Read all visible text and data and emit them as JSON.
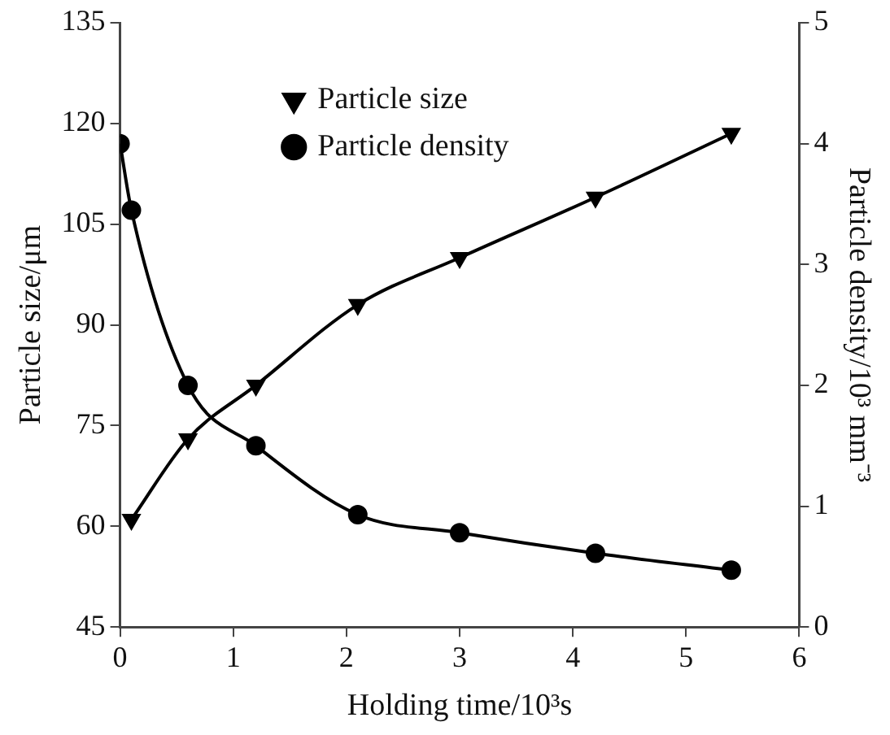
{
  "chart_data": {
    "type": "line",
    "xlabel": "Holding time/10³s",
    "ylabel": "Particle size/μm",
    "y2label": "Particle density/10³ mm⁻³",
    "xlim": [
      0,
      6
    ],
    "xticks": [
      0,
      1,
      2,
      3,
      4,
      5,
      6
    ],
    "ylim": [
      45,
      135
    ],
    "yticks": [
      45,
      60,
      75,
      90,
      105,
      120,
      135
    ],
    "y2lim": [
      0,
      5
    ],
    "y2ticks": [
      0,
      1,
      2,
      3,
      4,
      5
    ],
    "grid": false,
    "legend": "top",
    "line_style": "solid",
    "series": [
      {
        "name": "Particle size",
        "color": "#000000",
        "marker": "triangle",
        "x": [
          0.1,
          0.6,
          1.2,
          2.1,
          3.0,
          4.2,
          5.4
        ],
        "values": [
          61,
          73,
          81,
          93,
          100,
          109,
          118.5
        ]
      },
      {
        "name": "Particle density",
        "color": "#000000",
        "marker": "circle",
        "axis": "y2",
        "x": [
          0,
          0.1,
          0.6,
          1.2,
          2.1,
          3.0,
          4.2,
          5.4
        ],
        "values": [
          4.0,
          3.45,
          2.0,
          1.5,
          0.93,
          0.78,
          0.61,
          0.47
        ]
      }
    ]
  }
}
